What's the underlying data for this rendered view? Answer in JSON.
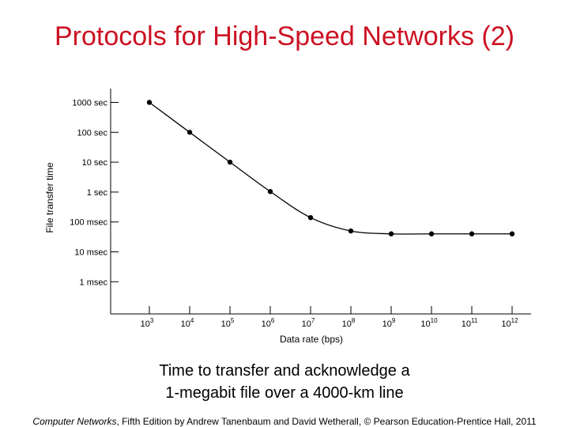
{
  "slide": {
    "title": "Protocols for High-Speed Networks (2)",
    "caption_line1": "Time to transfer and acknowledge a",
    "caption_line2": "1-megabit file over a 4000-km line",
    "credit_book": "Computer Networks",
    "credit_rest": ", Fifth Edition by Andrew Tanenbaum and David Wetherall, © Pearson Education-Prentice Hall, 2011",
    "title_color": "#cc1122"
  },
  "chart_data": {
    "type": "line",
    "title": "",
    "xlabel": "Data rate (bps)",
    "ylabel": "File transfer time",
    "x_scale": "log",
    "y_scale": "log",
    "x_ticks": [
      {
        "exp": "3",
        "value": 1000
      },
      {
        "exp": "4",
        "value": 10000
      },
      {
        "exp": "5",
        "value": 100000
      },
      {
        "exp": "6",
        "value": 1000000
      },
      {
        "exp": "7",
        "value": 10000000
      },
      {
        "exp": "8",
        "value": 100000000
      },
      {
        "exp": "9",
        "value": 1000000000
      },
      {
        "exp": "10",
        "value": 10000000000
      },
      {
        "exp": "11",
        "value": 100000000000
      },
      {
        "exp": "12",
        "value": 1000000000000
      }
    ],
    "y_ticks": [
      {
        "label": "1000 sec",
        "seconds": 1000
      },
      {
        "label": "100 sec",
        "seconds": 100
      },
      {
        "label": "10 sec",
        "seconds": 10
      },
      {
        "label": "1 sec",
        "seconds": 1
      },
      {
        "label": "100 msec",
        "seconds": 0.1
      },
      {
        "label": "10 msec",
        "seconds": 0.01
      },
      {
        "label": "1 msec",
        "seconds": 0.001
      }
    ],
    "x": [
      1000,
      10000,
      100000,
      1000000,
      10000000,
      100000000,
      1000000000,
      10000000000,
      100000000000,
      1000000000000
    ],
    "y": [
      1000.04,
      100.04,
      10.04,
      1.04,
      0.14,
      0.05,
      0.04,
      0.04,
      0.04,
      0.04
    ],
    "series_color": "#000000",
    "grid": false,
    "legend": "none"
  }
}
